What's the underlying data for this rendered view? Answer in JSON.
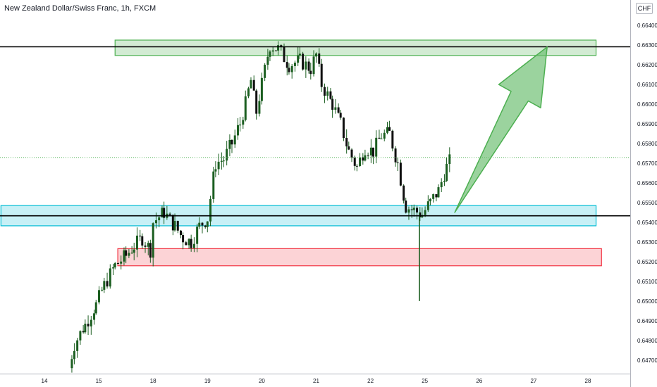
{
  "chart_data": {
    "type": "candlestick",
    "title": "New Zealand Dollar/Swiss Franc, 1h, FXCM",
    "currency": "CHF",
    "ylim": [
      0.6466,
      0.665
    ],
    "y_ticks": [
      0.664,
      0.663,
      0.662,
      0.661,
      0.66,
      0.659,
      0.658,
      0.657,
      0.656,
      0.655,
      0.654,
      0.653,
      0.652,
      0.651,
      0.65,
      0.649,
      0.648,
      0.647
    ],
    "y_tick_labels": [
      "0.66400",
      "0.66300",
      "0.66200",
      "0.66100",
      "0.66000",
      "0.65900",
      "0.65800",
      "0.65700",
      "0.65600",
      "0.65500",
      "0.65400",
      "0.65300",
      "0.65200",
      "0.65100",
      "0.65000",
      "0.64900",
      "0.64800",
      "0.64700"
    ],
    "x_ticks": [
      {
        "label": "14",
        "x": 14
      },
      {
        "label": "15",
        "x": 15
      },
      {
        "label": "18",
        "x": 16
      },
      {
        "label": "19",
        "x": 17
      },
      {
        "label": "20",
        "x": 18
      },
      {
        "label": "21",
        "x": 19
      },
      {
        "label": "22",
        "x": 20
      },
      {
        "label": "25",
        "x": 21
      },
      {
        "label": "26",
        "x": 22
      },
      {
        "label": "27",
        "x": 23
      },
      {
        "label": "28",
        "x": 24
      }
    ],
    "series_hint": [
      [
        14.45,
        0.6466
      ],
      [
        14.55,
        0.6478
      ],
      [
        14.75,
        0.6488
      ],
      [
        14.95,
        0.6498
      ],
      [
        15.1,
        0.6508
      ],
      [
        15.3,
        0.6518
      ],
      [
        15.5,
        0.6523
      ],
      [
        15.65,
        0.6528
      ],
      [
        15.8,
        0.6532
      ],
      [
        15.95,
        0.6526
      ],
      [
        16.0,
        0.654
      ],
      [
        16.2,
        0.6545
      ],
      [
        16.4,
        0.6538
      ],
      [
        16.55,
        0.6532
      ],
      [
        16.7,
        0.653
      ],
      [
        16.85,
        0.6538
      ],
      [
        17.0,
        0.6542
      ],
      [
        17.15,
        0.657
      ],
      [
        17.3,
        0.6572
      ],
      [
        17.45,
        0.658
      ],
      [
        17.6,
        0.659
      ],
      [
        17.7,
        0.66
      ],
      [
        17.8,
        0.6612
      ],
      [
        17.9,
        0.6596
      ],
      [
        18.0,
        0.661
      ],
      [
        18.15,
        0.663
      ],
      [
        18.3,
        0.6628
      ],
      [
        18.5,
        0.662
      ],
      [
        18.7,
        0.6622
      ],
      [
        18.9,
        0.6618
      ],
      [
        19.0,
        0.6625
      ],
      [
        19.1,
        0.661
      ],
      [
        19.3,
        0.66
      ],
      [
        19.45,
        0.659
      ],
      [
        19.6,
        0.6576
      ],
      [
        19.75,
        0.6568
      ],
      [
        19.9,
        0.6578
      ],
      [
        20.05,
        0.6576
      ],
      [
        20.2,
        0.6584
      ],
      [
        20.35,
        0.6585
      ],
      [
        20.5,
        0.657
      ],
      [
        20.65,
        0.6548
      ],
      [
        20.8,
        0.6546
      ],
      [
        20.95,
        0.6544
      ],
      [
        21.1,
        0.655
      ],
      [
        21.25,
        0.6556
      ],
      [
        21.4,
        0.6568
      ],
      [
        21.5,
        0.6573
      ]
    ],
    "spike": {
      "x": 20.9,
      "low": 0.65,
      "high": 0.6545
    },
    "zones": [
      {
        "name": "resistance-zone",
        "y_top": 0.66325,
        "y_bottom": 0.66247,
        "x_start": 15.3,
        "x_end": 24.15,
        "stroke": "#4caf50",
        "fill": "rgba(76,175,80,0.25)"
      },
      {
        "name": "support-zone",
        "y_top": 0.65485,
        "y_bottom": 0.65382,
        "x_start": 13.2,
        "x_end": 24.15,
        "stroke": "#00bcd4",
        "fill": "rgba(0,188,212,0.22)"
      },
      {
        "name": "demand-zone",
        "y_top": 0.65266,
        "y_bottom": 0.65179,
        "x_start": 15.35,
        "x_end": 24.25,
        "stroke": "#f23645",
        "fill": "rgba(242,54,69,0.22)"
      }
    ],
    "h_lines": [
      {
        "name": "upper-level-line",
        "y": 0.66291,
        "label": "0.66291",
        "color": "#000000"
      },
      {
        "name": "lower-level-line",
        "y": 0.65433,
        "label": "0.65433",
        "color": "#000000"
      }
    ],
    "current_price": {
      "y": 0.65729,
      "label": "0.65729",
      "color": "#4caf50"
    },
    "arrow": {
      "from": [
        21.55,
        0.6545
      ],
      "to": [
        23.25,
        0.6629
      ],
      "color": "#66bb6a"
    }
  }
}
